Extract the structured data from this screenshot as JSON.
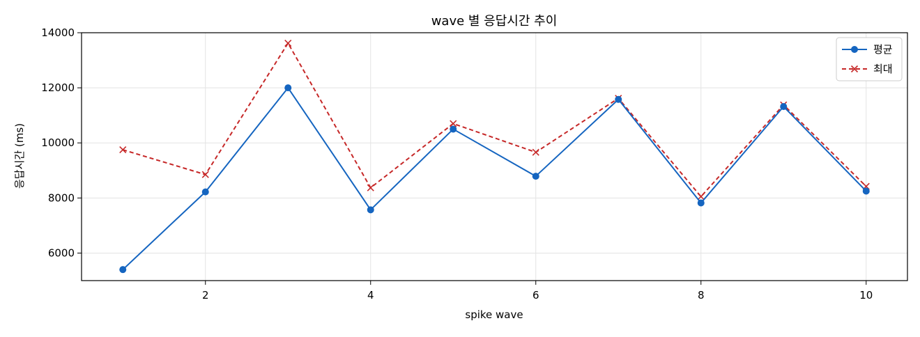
{
  "chart_data": {
    "type": "line",
    "title": "wave 별 응답시간 추이",
    "xlabel": "spike wave",
    "ylabel": "응답시간 (ms)",
    "x": [
      1,
      2,
      3,
      4,
      5,
      6,
      7,
      8,
      9,
      10
    ],
    "xlim": [
      0.5,
      10.5
    ],
    "ylim": [
      5000,
      14000
    ],
    "xticks": [
      2,
      4,
      6,
      8,
      10
    ],
    "yticks": [
      6000,
      8000,
      10000,
      12000,
      14000
    ],
    "grid": true,
    "legend_position": "top-right",
    "series": [
      {
        "name": "평균",
        "values": [
          5400,
          8220,
          12000,
          7570,
          10500,
          8790,
          11580,
          7820,
          11320,
          8250
        ],
        "color": "#1565c0",
        "line_style": "solid",
        "marker": "circle"
      },
      {
        "name": "최대",
        "values": [
          9750,
          8850,
          13620,
          8370,
          10700,
          9660,
          11620,
          8050,
          11380,
          8420
        ],
        "color": "#c62828",
        "line_style": "dashed",
        "marker": "x"
      }
    ]
  }
}
